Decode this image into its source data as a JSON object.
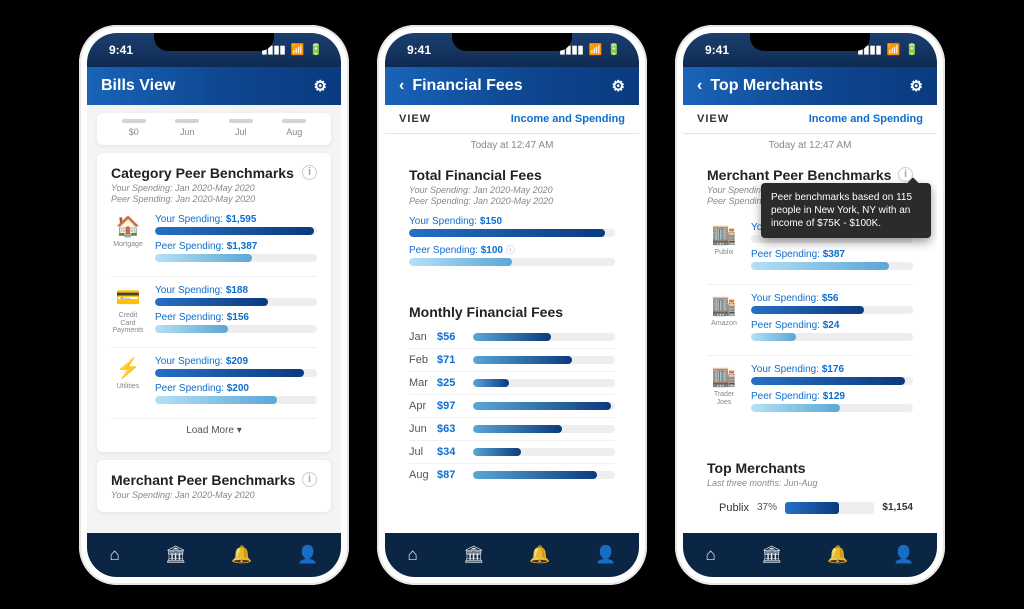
{
  "status": {
    "time": "9:41",
    "signal": "▮▮▮▮",
    "wifi": "▲",
    "battery": "■"
  },
  "colors": {
    "accent": "#0d6ecf",
    "you_grad_a": "#2670c5",
    "you_grad_b": "#0b3a7e",
    "peer_grad_a": "#b5e0f5",
    "peer_grad_b": "#5aa7d6",
    "background": "#f4f4f4",
    "tabbar": "#0b2545"
  },
  "screen1": {
    "title": "Bills View",
    "minichart": {
      "y_label": "$0",
      "months": [
        "Jun",
        "Jul",
        "Aug"
      ]
    },
    "category_card": {
      "title": "Category Peer Benchmarks",
      "sub1": "Your Spending: Jan 2020-May 2020",
      "sub2": "Peer Spending: Jan 2020-May 2020",
      "rows": [
        {
          "icon": "🏠",
          "label": "Mortgage",
          "you_lbl": "Your Spending:",
          "you_val": "$1,595",
          "you_pct": 98,
          "peer_lbl": "Peer Spending:",
          "peer_val": "$1,387",
          "peer_pct": 60
        },
        {
          "icon": "💳",
          "label": "Credit Card Payments",
          "you_lbl": "Your Spending:",
          "you_val": "$188",
          "you_pct": 70,
          "peer_lbl": "Peer Spending:",
          "peer_val": "$156",
          "peer_pct": 45
        },
        {
          "icon": "⚡",
          "label": "Utilities",
          "you_lbl": "Your Spending:",
          "you_val": "$209",
          "you_pct": 92,
          "peer_lbl": "Peer Spending:",
          "peer_val": "$200",
          "peer_pct": 75
        }
      ],
      "load_more": "Load More ▾"
    },
    "merchant_card": {
      "title": "Merchant Peer Benchmarks",
      "sub1": "Your Spending: Jan 2020-May 2020"
    }
  },
  "screen2": {
    "title": "Financial Fees",
    "view_label": "VIEW",
    "view_link": "Income and Spending",
    "timestamp": "Today at 12:47 AM",
    "total": {
      "title": "Total Financial Fees",
      "sub1": "Your Spending: Jan 2020-May 2020",
      "sub2": "Peer Spending: Jan 2020-May 2020",
      "you_lbl": "Your Spending:",
      "you_val": "$150",
      "you_pct": 95,
      "peer_lbl": "Peer Spending:",
      "peer_val": "$100",
      "peer_info": "ⓘ",
      "peer_pct": 50
    },
    "monthly": {
      "title": "Monthly Financial Fees",
      "rows": [
        {
          "month": "Jan",
          "val": "$56",
          "pct": 55
        },
        {
          "month": "Feb",
          "val": "$71",
          "pct": 70
        },
        {
          "month": "Mar",
          "val": "$25",
          "pct": 25
        },
        {
          "month": "Apr",
          "val": "$97",
          "pct": 97
        },
        {
          "month": "Jun",
          "val": "$63",
          "pct": 63
        },
        {
          "month": "Jul",
          "val": "$34",
          "pct": 34
        },
        {
          "month": "Aug",
          "val": "$87",
          "pct": 87
        }
      ]
    }
  },
  "screen3": {
    "title": "Top Merchants",
    "view_label": "VIEW",
    "view_link": "Income and Spending",
    "timestamp": "Today at 12:47 AM",
    "merchant_card": {
      "title": "Merchant Peer Benchmarks",
      "sub1": "Your Spending: Jan 2020-May 2020",
      "sub2": "Peer Spending: Jan 2020-May 2020",
      "tooltip": "Peer benchmarks based on 115 people in New York, NY with an income of $75K - $100K.",
      "rows": [
        {
          "icon": "🏬",
          "label": "Publix",
          "you_lbl": "Your Spending:",
          "you_val": "",
          "you_pct": 0,
          "peer_lbl": "Peer Spending:",
          "peer_val": "$387",
          "peer_pct": 85
        },
        {
          "icon": "🏬",
          "label": "Amazon",
          "you_lbl": "Your Spending:",
          "you_val": "$56",
          "you_pct": 70,
          "peer_lbl": "Peer Spending:",
          "peer_val": "$24",
          "peer_pct": 28
        },
        {
          "icon": "🏬",
          "label": "Trader Joes",
          "you_lbl": "Your Spending:",
          "you_val": "$176",
          "you_pct": 95,
          "peer_lbl": "Peer Spending:",
          "peer_val": "$129",
          "peer_pct": 55
        }
      ]
    },
    "top_merchants": {
      "title": "Top Merchants",
      "sub": "Last three months: Jun-Aug",
      "rows": [
        {
          "name": "Publix",
          "pct_label": "37%",
          "pct": 60,
          "val": "$1,154"
        }
      ]
    }
  },
  "tabbar": {
    "home": "⌂",
    "bank": "🏛",
    "bell": "🔔",
    "user": "👤"
  }
}
